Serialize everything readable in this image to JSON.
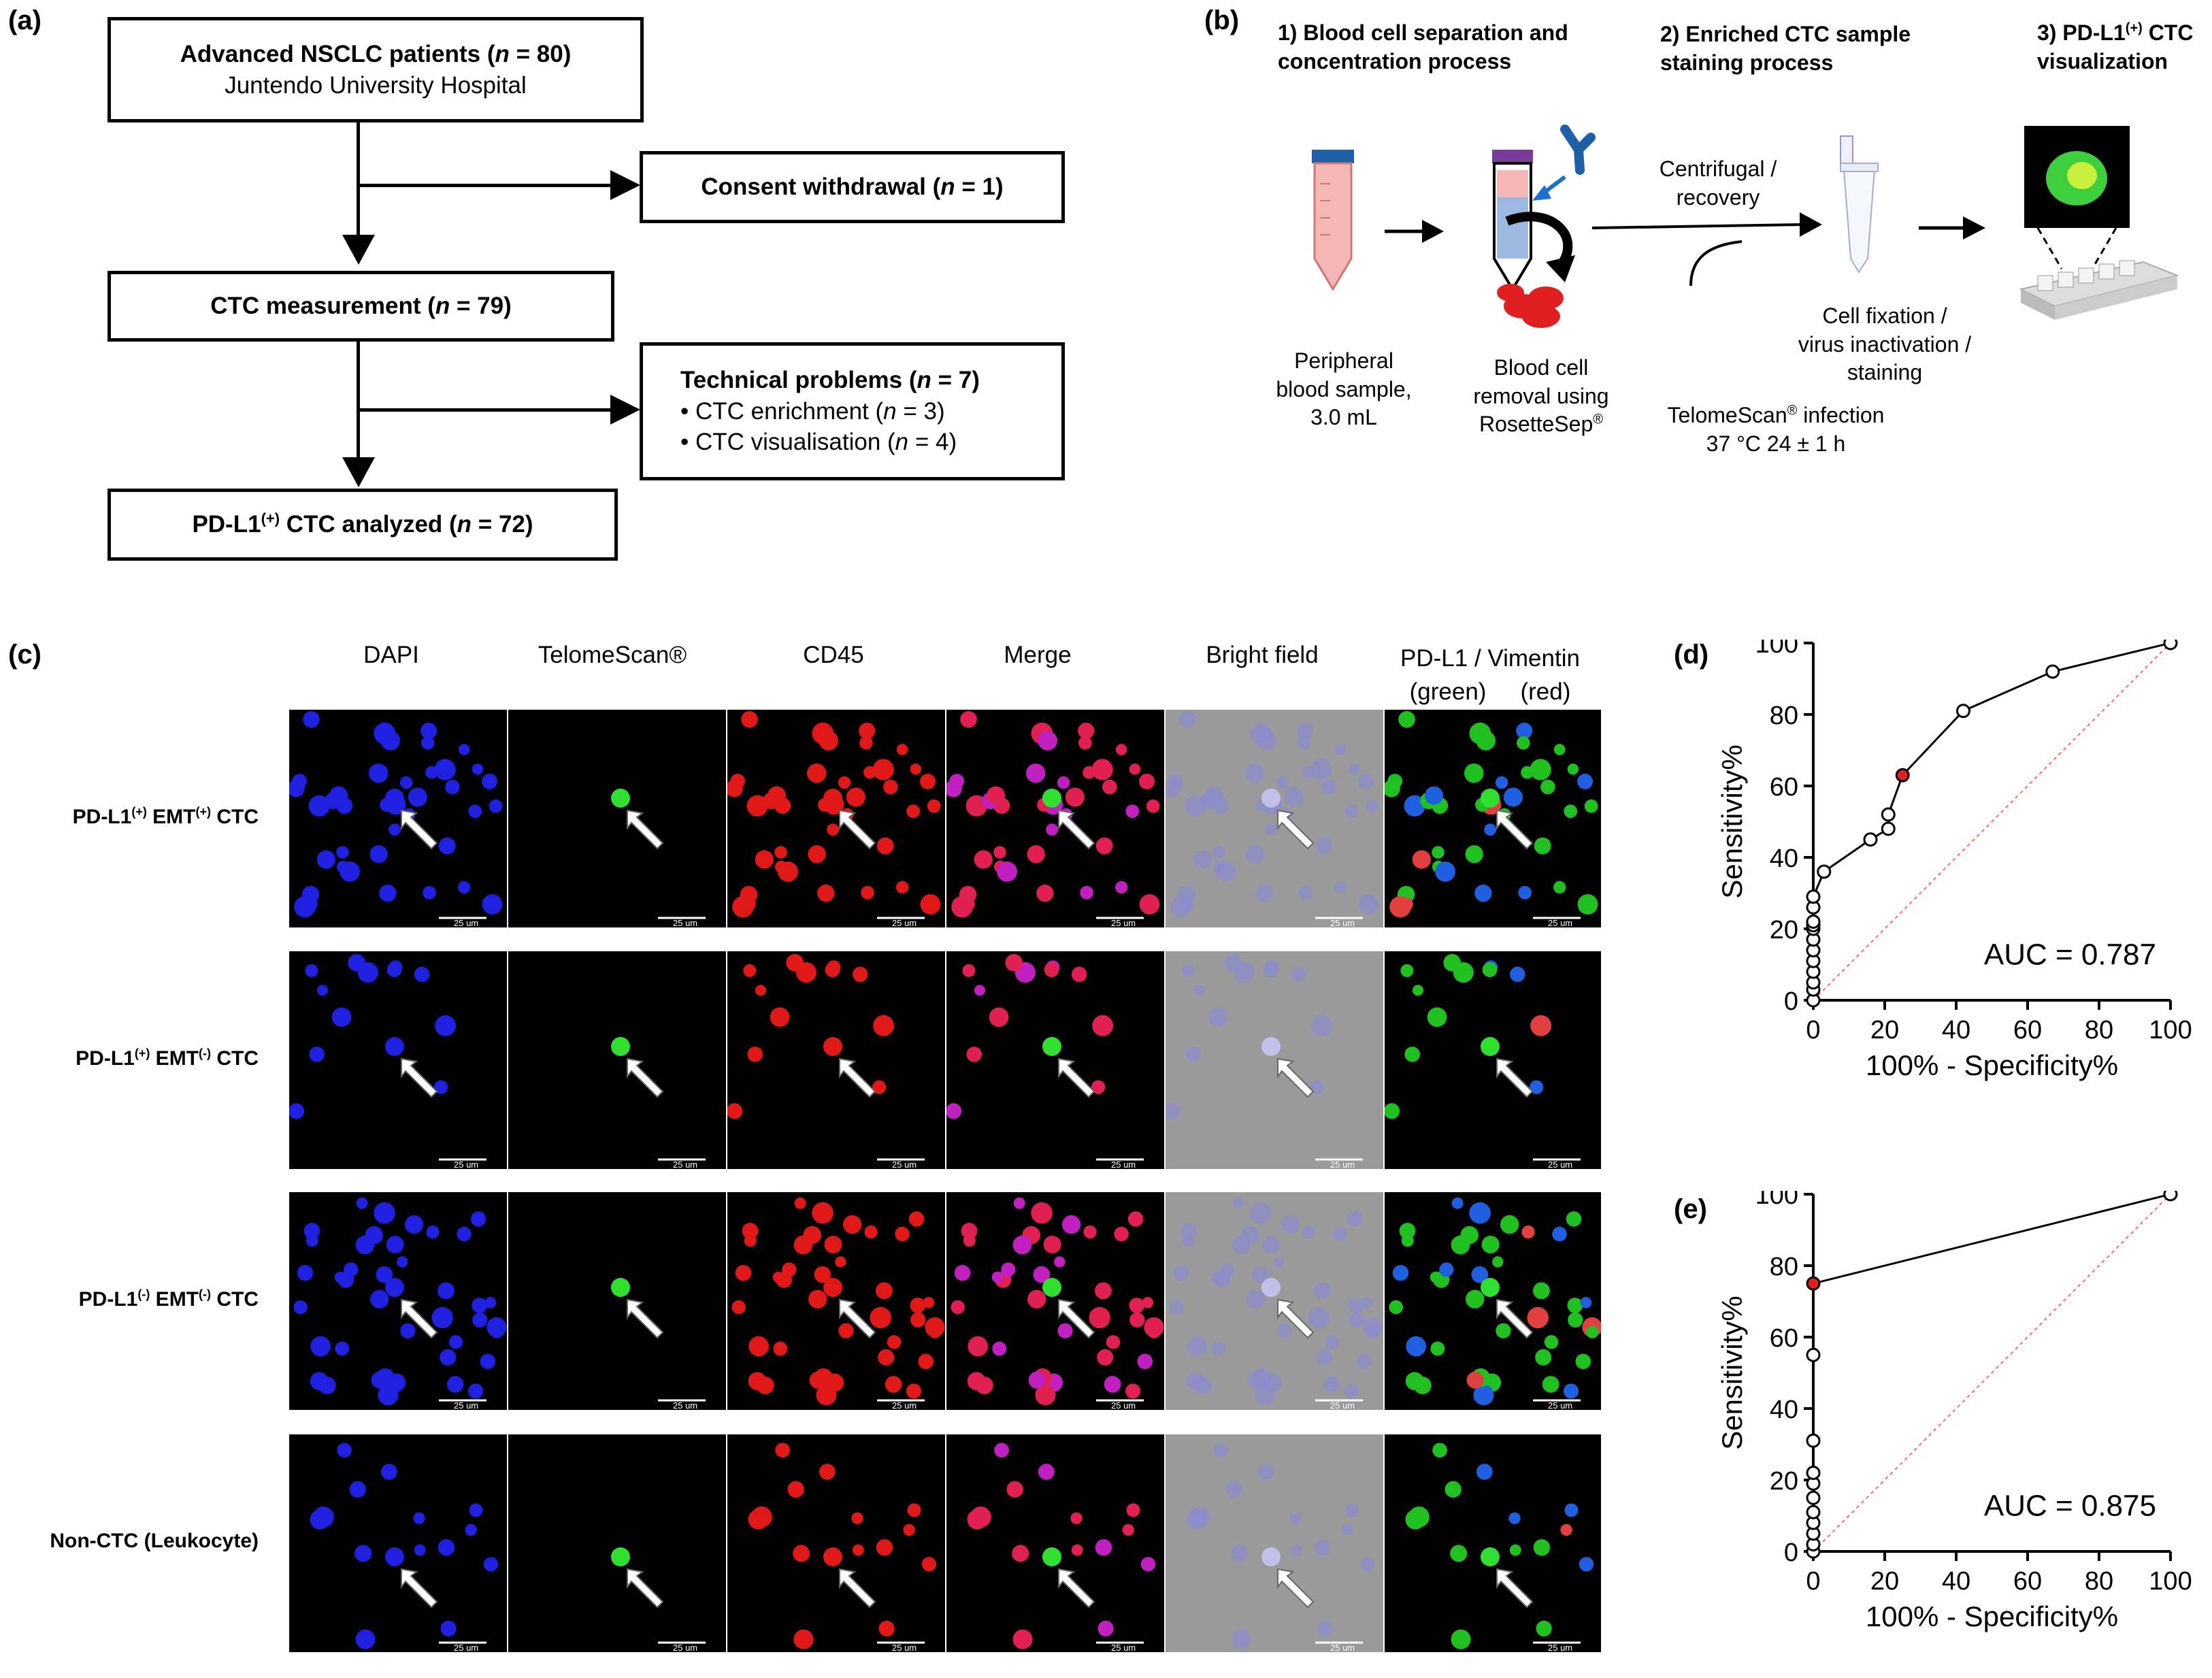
{
  "panels": {
    "a": "(a)",
    "b": "(b)",
    "c": "(c)",
    "d": "(d)",
    "e": "(e)"
  },
  "flow": {
    "box1_line1_pre": "Advanced NSCLC patients (",
    "box1_line1_n": "n",
    "box1_line1_post": " = 80)",
    "box1_line2": "Juntendo University Hospital",
    "box2_pre": "Consent withdrawal (",
    "box2_n": "n",
    "box2_post": " = 1)",
    "box3_pre": "CTC measurement (",
    "box3_n": "n",
    "box3_post": " = 79)",
    "box4_title_pre": "Technical problems (",
    "box4_title_n": "n",
    "box4_title_post": " = 7)",
    "box4_item1_pre": "• CTC enrichment (",
    "box4_item1_n": "n",
    "box4_item1_post": " = 3)",
    "box4_item2_pre": "• CTC visualisation (",
    "box4_item2_n": "n",
    "box4_item2_post": " = 4)",
    "box5_pre": "PD-L1",
    "box5_sup": "(+)",
    "box5_mid": " CTC analyzed (",
    "box5_n": "n",
    "box5_post": " = 72)"
  },
  "workflow": {
    "step1_line1": "1) Blood cell separation and",
    "step1_line2": "concentration process",
    "step2_line1": "2) Enriched CTC sample",
    "step2_line2": "staining process",
    "step3_line1_pre": "3) PD-L1",
    "step3_sup": "(+)",
    "step3_line1_post": " CTC",
    "step3_line2": "visualization",
    "sample_line1": "Peripheral",
    "sample_line2": "blood sample,",
    "sample_line3": "3.0 mL",
    "removal_line1": "Blood cell",
    "removal_line2": "removal using",
    "removal_line3": "RosetteSep",
    "reg": "®",
    "centrifugal_line1": "Centrifugal /",
    "centrifugal_line2": "recovery",
    "infection_line1": "TelomeScan",
    "infection_line1_post": " infection",
    "infection_line2": "37 °C  24 ± 1 h",
    "fixation_line1": "Cell fixation /",
    "fixation_line2": "virus inactivation /",
    "fixation_line3": "staining"
  },
  "micro": {
    "columns": [
      "DAPI",
      "TelomeScan®",
      "CD45",
      "Merge",
      "Bright field"
    ],
    "col6_line1": "PD-L1 / Vimentin",
    "col6_green": "(green)",
    "col6_red": "(red)",
    "rows": [
      {
        "pre": "PD-L1",
        "sup1": "(+)",
        "mid": " EMT",
        "sup2": "(+)",
        "post": " CTC"
      },
      {
        "pre": "PD-L1",
        "sup1": "(+)",
        "mid": " EMT",
        "sup2": "(-)",
        "post": " CTC"
      },
      {
        "pre": "PD-L1",
        "sup1": "(-)",
        "mid": " EMT",
        "sup2": "(-)",
        "post": " CTC"
      },
      {
        "pre": "Non-CTC (Leukocyte)",
        "sup1": "",
        "mid": "",
        "sup2": "",
        "post": ""
      }
    ],
    "scale_label": "25 um"
  },
  "chart_data": [
    {
      "type": "line",
      "xlabel": "100% - Specificity%",
      "ylabel": "Sensitivity%",
      "xlim": [
        0,
        100
      ],
      "ylim": [
        0,
        100
      ],
      "xticks": [
        0,
        20,
        40,
        60,
        80,
        100
      ],
      "yticks": [
        0,
        20,
        40,
        60,
        80,
        100
      ],
      "annotation": "AUC = 0.787",
      "roc_points": [
        [
          0,
          0
        ],
        [
          0,
          3
        ],
        [
          0,
          5
        ],
        [
          0,
          8
        ],
        [
          0,
          11
        ],
        [
          0,
          14
        ],
        [
          0,
          17
        ],
        [
          0,
          20
        ],
        [
          0,
          21
        ],
        [
          0,
          22
        ],
        [
          0,
          26
        ],
        [
          0,
          29
        ],
        [
          3,
          36
        ],
        [
          16,
          45
        ],
        [
          21,
          48
        ],
        [
          21,
          52
        ],
        [
          25,
          63
        ],
        [
          42,
          81
        ],
        [
          67,
          92
        ],
        [
          100,
          100
        ]
      ],
      "highlight_point": [
        25,
        63
      ],
      "reference_line": [
        [
          0,
          0
        ],
        [
          100,
          100
        ]
      ],
      "colors": {
        "curve": "#000000",
        "highlight": "#e02020",
        "reference": "#ff6666"
      }
    },
    {
      "type": "line",
      "xlabel": "100% - Specificity%",
      "ylabel": "Sensitivity%",
      "xlim": [
        0,
        100
      ],
      "ylim": [
        0,
        100
      ],
      "xticks": [
        0,
        20,
        40,
        60,
        80,
        100
      ],
      "yticks": [
        0,
        20,
        40,
        60,
        80,
        100
      ],
      "annotation": "AUC = 0.875",
      "roc_points": [
        [
          0,
          0
        ],
        [
          0,
          2
        ],
        [
          0,
          5
        ],
        [
          0,
          8
        ],
        [
          0,
          11
        ],
        [
          0,
          15
        ],
        [
          0,
          19
        ],
        [
          0,
          22
        ],
        [
          0,
          31
        ],
        [
          0,
          55
        ],
        [
          0,
          75
        ],
        [
          100,
          100
        ]
      ],
      "highlight_point": [
        0,
        75
      ],
      "reference_line": [
        [
          0,
          0
        ],
        [
          100,
          100
        ]
      ],
      "colors": {
        "curve": "#000000",
        "highlight": "#e02020",
        "reference": "#ff6666"
      }
    }
  ]
}
